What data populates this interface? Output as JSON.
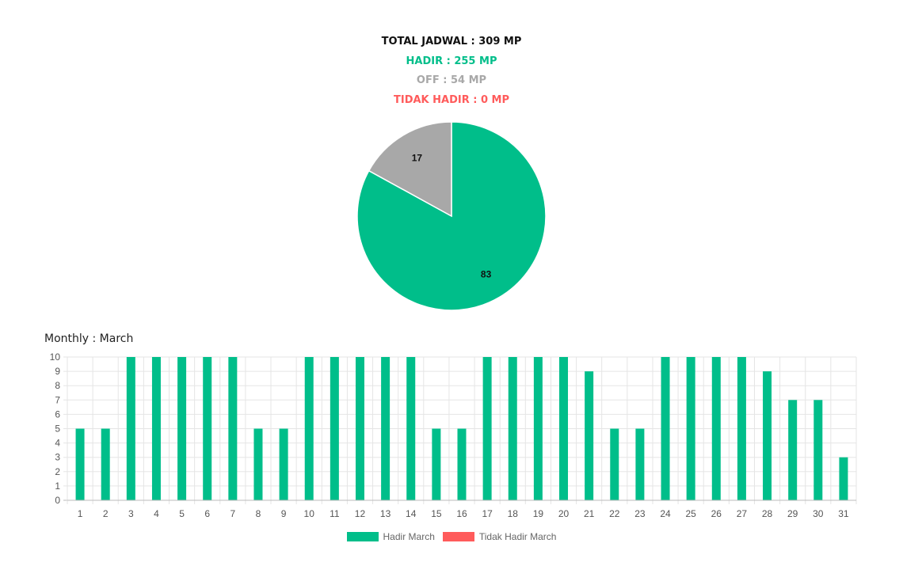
{
  "summary": {
    "total": "TOTAL JADWAL : 309 MP",
    "hadir": "HADIR : 255 MP",
    "off": "OFF : 54 MP",
    "tidak_hadir": "TIDAK HADIR : 0 MP"
  },
  "colors": {
    "hadir": "#00be8a",
    "off": "#a8a8a8",
    "tidak_hadir": "#ff5b5b",
    "total": "#111111"
  },
  "monthly_title": "Monthly : March",
  "chart_data": [
    {
      "type": "pie",
      "slices": [
        {
          "label": "83",
          "value": 83,
          "color": "#00be8a"
        },
        {
          "label": "17",
          "value": 17,
          "color": "#a8a8a8"
        }
      ]
    },
    {
      "type": "bar",
      "categories": [
        "1",
        "2",
        "3",
        "4",
        "5",
        "6",
        "7",
        "8",
        "9",
        "10",
        "11",
        "12",
        "13",
        "14",
        "15",
        "16",
        "17",
        "18",
        "19",
        "20",
        "21",
        "22",
        "23",
        "24",
        "25",
        "26",
        "27",
        "28",
        "29",
        "30",
        "31"
      ],
      "series": [
        {
          "name": "Hadir March",
          "color": "#00be8a",
          "values": [
            5,
            5,
            10,
            10,
            10,
            10,
            10,
            5,
            5,
            10,
            10,
            10,
            10,
            10,
            5,
            5,
            10,
            10,
            10,
            10,
            9,
            5,
            5,
            10,
            10,
            10,
            10,
            9,
            7,
            7,
            3
          ]
        },
        {
          "name": "Tidak Hadir March",
          "color": "#ff5b5b",
          "values": [
            0,
            0,
            0,
            0,
            0,
            0,
            0,
            0,
            0,
            0,
            0,
            0,
            0,
            0,
            0,
            0,
            0,
            0,
            0,
            0,
            0,
            0,
            0,
            0,
            0,
            0,
            0,
            0,
            0,
            0,
            0
          ]
        }
      ],
      "ylim": [
        0,
        10
      ],
      "yticks": [
        "0",
        "1",
        "2",
        "3",
        "4",
        "5",
        "6",
        "7",
        "8",
        "9",
        "10"
      ],
      "grid": true,
      "legend": "bottom"
    }
  ]
}
